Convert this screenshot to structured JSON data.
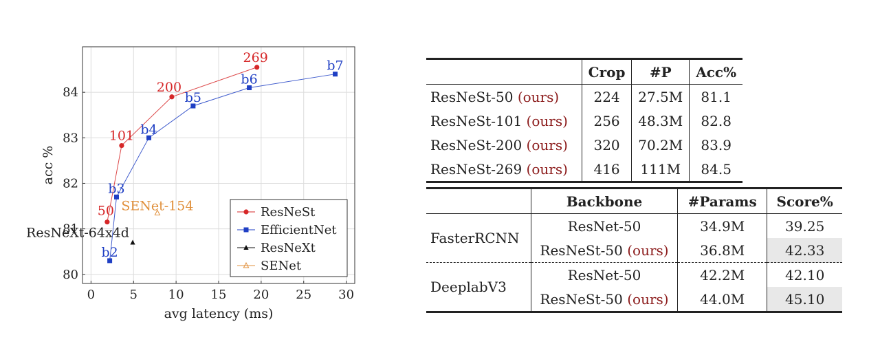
{
  "chart_data": {
    "type": "scatter",
    "xlabel": "avg latency (ms)",
    "ylabel": "acc %",
    "xlim": [
      -1,
      31
    ],
    "ylim": [
      79.8,
      85
    ],
    "xticks": [
      0,
      5,
      10,
      15,
      20,
      25,
      30
    ],
    "yticks": [
      80,
      81,
      82,
      83,
      84
    ],
    "grid": true,
    "legend_position": "bottom-right",
    "series": [
      {
        "name": "ResNeSt",
        "color": "#d62728",
        "marker": "circle",
        "points": [
          {
            "x": 1.9,
            "y": 81.15,
            "label": "50"
          },
          {
            "x": 3.6,
            "y": 82.83,
            "label": "101"
          },
          {
            "x": 9.5,
            "y": 83.9,
            "label": "200"
          },
          {
            "x": 19.5,
            "y": 84.55,
            "label": "269"
          }
        ]
      },
      {
        "name": "EfficientNet",
        "color": "#1f3fc4",
        "marker": "square",
        "points": [
          {
            "x": 2.2,
            "y": 80.3,
            "label": "b2"
          },
          {
            "x": 3.0,
            "y": 81.7,
            "label": "b3"
          },
          {
            "x": 6.8,
            "y": 83.0,
            "label": "b4"
          },
          {
            "x": 12.0,
            "y": 83.7,
            "label": "b5"
          },
          {
            "x": 18.6,
            "y": 84.1,
            "label": "b6"
          },
          {
            "x": 28.7,
            "y": 84.4,
            "label": "b7"
          }
        ]
      },
      {
        "name": "ResNeXt",
        "color": "#111111",
        "marker": "triangle",
        "points": [
          {
            "x": 4.9,
            "y": 80.7,
            "label": "ResNeXt-64x4d"
          }
        ]
      },
      {
        "name": "SENet",
        "color": "#e0903c",
        "marker": "triangle-open",
        "points": [
          {
            "x": 7.8,
            "y": 81.35,
            "label": "SENet-154"
          }
        ]
      }
    ]
  },
  "table1": {
    "headers": [
      "",
      "Crop",
      "#P",
      "Acc%"
    ],
    "rows": [
      {
        "model": "ResNeSt-50",
        "ours": "(ours)",
        "crop": "224",
        "params": "27.5M",
        "acc": "81.1"
      },
      {
        "model": "ResNeSt-101",
        "ours": "(ours)",
        "crop": "256",
        "params": "48.3M",
        "acc": "82.8"
      },
      {
        "model": "ResNeSt-200",
        "ours": "(ours)",
        "crop": "320",
        "params": "70.2M",
        "acc": "83.9"
      },
      {
        "model": "ResNeSt-269",
        "ours": "(ours)",
        "crop": "416",
        "params": "111M",
        "acc": "84.5"
      }
    ]
  },
  "table2": {
    "headers": [
      "",
      "Backbone",
      "#Params",
      "Score%"
    ],
    "groups": [
      {
        "method": "FasterRCNN",
        "rows": [
          {
            "backbone": "ResNet-50",
            "ours": "",
            "params": "34.9M",
            "score": "39.25",
            "highlight": false
          },
          {
            "backbone": "ResNeSt-50",
            "ours": "(ours)",
            "params": "36.8M",
            "score": "42.33",
            "highlight": true
          }
        ]
      },
      {
        "method": "DeeplabV3",
        "rows": [
          {
            "backbone": "ResNet-50",
            "ours": "",
            "params": "42.2M",
            "score": "42.10",
            "highlight": false
          },
          {
            "backbone": "ResNeSt-50",
            "ours": "(ours)",
            "params": "44.0M",
            "score": "45.10",
            "highlight": true
          }
        ]
      }
    ]
  }
}
